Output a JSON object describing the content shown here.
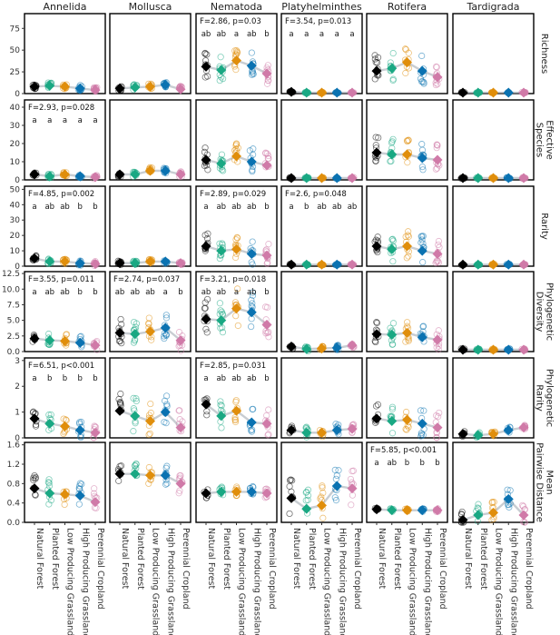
{
  "colors": {
    "Natural Forest": "#000000",
    "Planted Forest": "#19a883",
    "Low Producing Grassland": "#e08e0b",
    "High Producing Grassland": "#0a72b1",
    "Perennial Cropland": "#d07aa8"
  },
  "chart_data": {
    "type": "scatter",
    "title": "",
    "groups": [
      "Annelida",
      "Mollusca",
      "Nematoda",
      "Platyhelminthes",
      "Rotifera",
      "Tardigrada"
    ],
    "categories": [
      "Natural Forest",
      "Planted Forest",
      "Low Producing Grassland",
      "High Producing Grassland",
      "Perennial Cropland"
    ],
    "metrics": [
      {
        "label": "Richness",
        "ylim": [
          0,
          92
        ],
        "ticks": [
          "0",
          "25",
          "50",
          "75"
        ],
        "tick_values": [
          0,
          25,
          50,
          75
        ],
        "means": [
          [
            8,
            9,
            8,
            6,
            4
          ],
          [
            6,
            7,
            8,
            10,
            5
          ],
          [
            31,
            27,
            38,
            32,
            23
          ],
          [
            2,
            1,
            1,
            1,
            1
          ],
          [
            26,
            29,
            36,
            26,
            19
          ],
          [
            1,
            1,
            1,
            1,
            1
          ]
        ],
        "spread": [
          3,
          3,
          13,
          0.5,
          15,
          0.5
        ],
        "annotations": [
          {
            "group": 2,
            "stat": "F=2.86, p=0.03",
            "letters": [
              "ab",
              "ab",
              "a",
              "ab",
              "b"
            ]
          },
          {
            "group": 3,
            "stat": "F=3.54, p=0.013",
            "letters": [
              "a",
              "a",
              "a",
              "a",
              "a"
            ]
          }
        ]
      },
      {
        "label": "Effective Species",
        "ylim": [
          0,
          44
        ],
        "ticks": [
          "0",
          "10",
          "20",
          "30",
          "40"
        ],
        "tick_values": [
          0,
          10,
          20,
          30,
          40
        ],
        "means": [
          [
            3,
            2,
            3,
            2,
            1.5
          ],
          [
            3,
            3,
            5,
            5,
            3
          ],
          [
            11,
            9,
            13,
            10,
            8
          ],
          [
            1,
            1,
            1,
            1,
            1
          ],
          [
            15,
            14,
            14,
            12,
            11
          ],
          [
            1,
            1,
            1,
            1,
            1
          ]
        ],
        "spread": [
          1,
          1.5,
          6,
          0.3,
          7,
          0.3
        ],
        "annotations": [
          {
            "group": 0,
            "stat": "F=2.93, p=0.028",
            "letters": [
              "a",
              "a",
              "a",
              "a",
              "a"
            ]
          }
        ]
      },
      {
        "label": "Rarity",
        "ylim": [
          0,
          52
        ],
        "ticks": [
          "0",
          "10",
          "20",
          "30",
          "40",
          "50"
        ],
        "tick_values": [
          0,
          10,
          20,
          30,
          40,
          50
        ],
        "means": [
          [
            5,
            3,
            3,
            2,
            1.5
          ],
          [
            2,
            2,
            3,
            3,
            2
          ],
          [
            13,
            10,
            11,
            8,
            7
          ],
          [
            1,
            1,
            1,
            1,
            1
          ],
          [
            13,
            11,
            13,
            10,
            8
          ],
          [
            1,
            1,
            1,
            1,
            1
          ]
        ],
        "spread": [
          1.5,
          1.2,
          7,
          0.3,
          8,
          0.3
        ],
        "annotations": [
          {
            "group": 0,
            "stat": "F=4.85, p=0.002",
            "letters": [
              "a",
              "ab",
              "ab",
              "b",
              "b"
            ]
          },
          {
            "group": 2,
            "stat": "F=2.89, p=0.029",
            "letters": [
              "a",
              "ab",
              "ab",
              "ab",
              "b"
            ]
          },
          {
            "group": 3,
            "stat": "F=2.6, p=0.048",
            "letters": [
              "a",
              "b",
              "ab",
              "ab",
              "ab"
            ]
          }
        ]
      },
      {
        "label": "Phylogenetic Diversity",
        "ylim": [
          0,
          12.8
        ],
        "ticks": [
          "0.0",
          "2.5",
          "5.0",
          "7.5",
          "10.0",
          "12.5"
        ],
        "tick_values": [
          0,
          2.5,
          5,
          7.5,
          10,
          12.5
        ],
        "means": [
          [
            2.1,
            1.8,
            1.7,
            1.4,
            1.0
          ],
          [
            3.0,
            2.8,
            3.2,
            3.8,
            1.8
          ],
          [
            5.2,
            5.0,
            6.9,
            6.3,
            4.3
          ],
          [
            0.8,
            0.4,
            0.5,
            0.6,
            1.0
          ],
          [
            2.8,
            2.7,
            3.0,
            2.3,
            1.9
          ],
          [
            0.3,
            0.3,
            0.3,
            0.3,
            0.3
          ]
        ],
        "spread": [
          0.9,
          1.8,
          2.8,
          0.4,
          1.6,
          0.15
        ],
        "annotations": [
          {
            "group": 0,
            "stat": "F=3.55, p=0.011",
            "letters": [
              "a",
              "ab",
              "ab",
              "b",
              "b"
            ]
          },
          {
            "group": 1,
            "stat": "F=2.74, p=0.037",
            "letters": [
              "ab",
              "ab",
              "ab",
              "a",
              "b"
            ]
          },
          {
            "group": 2,
            "stat": "F=3.21, p=0.018",
            "letters": [
              "ab",
              "ab",
              "a",
              "ab",
              "b"
            ]
          }
        ]
      },
      {
        "label": "Phylogenetic Rarity",
        "ylim": [
          0,
          3.1
        ],
        "ticks": [
          "0",
          "1",
          "2",
          "3"
        ],
        "tick_values": [
          0,
          1,
          2,
          3
        ],
        "means": [
          [
            0.75,
            0.55,
            0.45,
            0.3,
            0.2
          ],
          [
            1.05,
            0.85,
            0.65,
            1.0,
            0.4
          ],
          [
            1.3,
            0.85,
            1.05,
            0.6,
            0.55
          ],
          [
            0.3,
            0.2,
            0.2,
            0.3,
            0.35
          ],
          [
            0.75,
            0.65,
            0.7,
            0.55,
            0.4
          ],
          [
            0.15,
            0.1,
            0.15,
            0.3,
            0.4
          ]
        ],
        "spread": [
          0.3,
          0.6,
          0.5,
          0.2,
          0.5,
          0.1
        ],
        "annotations": [
          {
            "group": 0,
            "stat": "F=6.51, p<0.001",
            "letters": [
              "a",
              "b",
              "b",
              "b",
              "b"
            ]
          },
          {
            "group": 2,
            "stat": "F=2.85, p=0.031",
            "letters": [
              "a",
              "ab",
              "ab",
              "ab",
              "b"
            ]
          }
        ]
      },
      {
        "label": "Mean Pairwise Distance",
        "ylim": [
          0,
          1.65
        ],
        "ticks": [
          "0.0",
          "0.4",
          "0.8",
          "1.2",
          "1.6"
        ],
        "tick_values": [
          0,
          0.4,
          0.8,
          1.2,
          1.6
        ],
        "means": [
          [
            0.7,
            0.6,
            0.58,
            0.55,
            0.42
          ],
          [
            1.0,
            1.0,
            0.97,
            0.97,
            0.8
          ],
          [
            0.6,
            0.63,
            0.63,
            0.63,
            0.6
          ],
          [
            0.5,
            0.28,
            0.35,
            0.75,
            0.7
          ],
          [
            0.27,
            0.25,
            0.25,
            0.25,
            0.25
          ],
          [
            0.05,
            0.15,
            0.2,
            0.48,
            0.15
          ]
        ],
        "spread": [
          0.25,
          0.2,
          0.1,
          0.35,
          0.03,
          0.2
        ],
        "annotations": [
          {
            "group": 4,
            "stat": "F=5.85, p<0.001",
            "letters": [
              "a",
              "ab",
              "b",
              "b",
              "b"
            ]
          }
        ]
      }
    ]
  }
}
